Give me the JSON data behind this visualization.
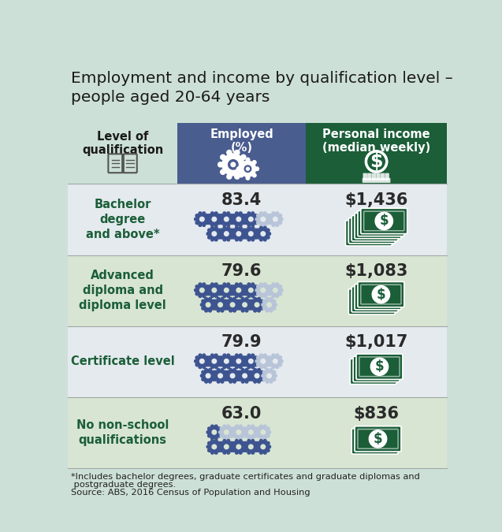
{
  "title": "Employment and income by qualification level –\npeople aged 20-64 years",
  "col1_header": "Level of\nqualification",
  "col2_header": "Employed\n(%)",
  "col3_header": "Personal income\n(median weekly)",
  "rows": [
    {
      "label": "Bachelor\ndegree\nand above*",
      "employed": "83.4",
      "income": "$1,436",
      "filled_gears_row1": 5,
      "empty_gears_row1": 2,
      "filled_gears_row2": 5,
      "empty_gears_row2": 0,
      "note_stacks": 6,
      "bg_color": "#e4eaee"
    },
    {
      "label": "Advanced\ndiploma and\ndiploma level",
      "employed": "79.6",
      "income": "$1,083",
      "filled_gears_row1": 5,
      "empty_gears_row1": 2,
      "filled_gears_row2": 5,
      "empty_gears_row2": 1,
      "note_stacks": 4,
      "bg_color": "#d8e5d2"
    },
    {
      "label": "Certificate level",
      "employed": "79.9",
      "income": "$1,017",
      "filled_gears_row1": 5,
      "empty_gears_row1": 2,
      "filled_gears_row2": 5,
      "empty_gears_row2": 1,
      "note_stacks": 3,
      "bg_color": "#e4eaee"
    },
    {
      "label": "No non-school\nqualifications",
      "employed": "63.0",
      "income": "$836",
      "filled_gears_row1": 1,
      "empty_gears_row1": 4,
      "filled_gears_row2": 5,
      "empty_gears_row2": 0,
      "note_stacks": 2,
      "bg_color": "#d8e5d2"
    }
  ],
  "header_col2_color": "#4a5d8f",
  "header_col3_color": "#1b5e38",
  "label_color": "#1b5e38",
  "gear_filled_color": "#3d5491",
  "gear_empty_color": "#b8c4d8",
  "note_color": "#1b5e38",
  "background_color": "#cde0d8",
  "footnote1": "*Includes bachelor degrees, graduate certificates and graduate diplomas and",
  "footnote2": " postgraduate degrees.",
  "footnote3": "Source: ABS, 2016 Census of Population and Housing"
}
